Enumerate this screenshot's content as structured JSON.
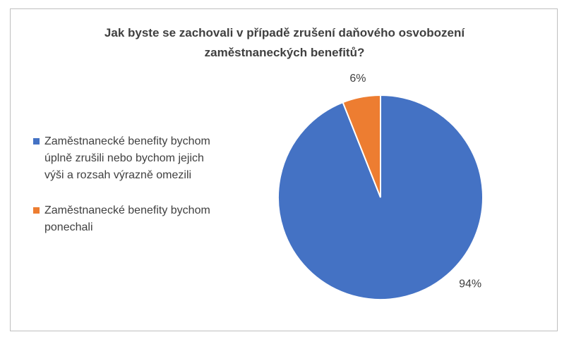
{
  "chart_data": {
    "type": "pie",
    "title_line1": "Jak byste se zachovali v případě zrušení daňového osvobození",
    "title_line2": "zaměstnaneckých benefitů?",
    "categories": [
      "Zaměstnanecké benefity bychom úplně zrušili nebo bychom jejich výši a rozsah výrazně omezili",
      "Zaměstnanecké benefity bychom ponechali"
    ],
    "legend_lines": [
      [
        "Zaměstnanecké benefity bychom",
        "úplně zrušili nebo bychom jejich",
        "výši a rozsah výrazně omezili"
      ],
      [
        "Zaměstnanecké benefity bychom",
        "ponechali"
      ]
    ],
    "values": [
      94,
      6
    ],
    "data_labels": [
      "94%",
      "6%"
    ],
    "colors": [
      "#4472c4",
      "#ed7d31"
    ],
    "legend_position": "left"
  }
}
